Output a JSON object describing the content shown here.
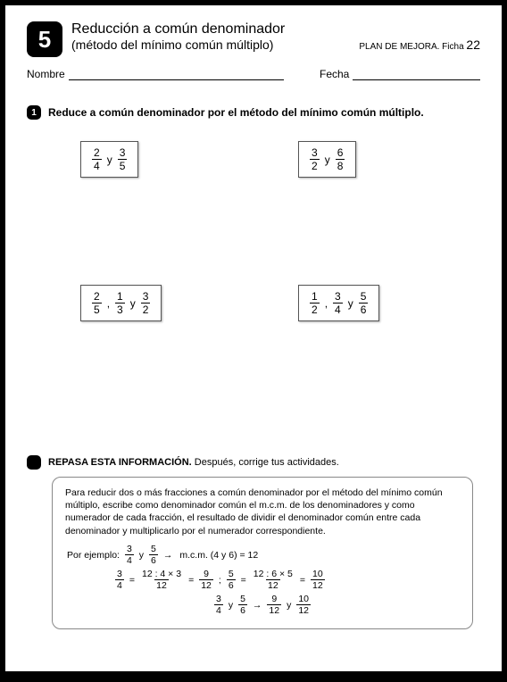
{
  "header": {
    "lesson_number": "5",
    "title": "Reducción a común denominador",
    "subtitle": "(método del mínimo común múltiplo)",
    "plan_label": "PLAN DE MEJORA. Ficha",
    "plan_number": "22"
  },
  "fields": {
    "nombre_label": "Nombre",
    "fecha_label": "Fecha"
  },
  "exercise": {
    "number": "1",
    "instruction": "Reduce a común denominador por el método del mínimo común múltiplo.",
    "y": "y",
    "comma": ",",
    "problems": [
      {
        "fractions": [
          {
            "n": "2",
            "d": "4"
          },
          {
            "n": "3",
            "d": "5"
          }
        ]
      },
      {
        "fractions": [
          {
            "n": "3",
            "d": "2"
          },
          {
            "n": "6",
            "d": "8"
          }
        ]
      },
      {
        "fractions": [
          {
            "n": "2",
            "d": "5"
          },
          {
            "n": "1",
            "d": "3"
          },
          {
            "n": "3",
            "d": "2"
          }
        ]
      },
      {
        "fractions": [
          {
            "n": "1",
            "d": "2"
          },
          {
            "n": "3",
            "d": "4"
          },
          {
            "n": "5",
            "d": "6"
          }
        ]
      }
    ]
  },
  "review": {
    "title_bold": "REPASA ESTA INFORMACIÓN.",
    "title_rest": " Después, corrige tus actividades.",
    "text": "Para reducir dos o más fracciones a común denominador por el método del mínimo común múltiplo, escribe como denominador común el m.c.m. de los denominadores y como numerador de cada fracción, el resultado de dividir el denominador común entre cada denominador y multiplicarlo por el numerador correspondiente.",
    "example_label": "Por ejemplo:",
    "ex_f1": {
      "n": "3",
      "d": "4"
    },
    "ex_f2": {
      "n": "5",
      "d": "6"
    },
    "arrow": "→",
    "mcm_text": "m.c.m. (4 y 6) = 12",
    "eq": "=",
    "semi": ";",
    "line2_a": {
      "n": "3",
      "d": "4"
    },
    "line2_b": {
      "n": "12 : 4 × 3",
      "d": "12"
    },
    "line2_c": {
      "n": "9",
      "d": "12"
    },
    "line2_d": {
      "n": "5",
      "d": "6"
    },
    "line2_e": {
      "n": "12 : 6 × 5",
      "d": "12"
    },
    "line2_f": {
      "n": "10",
      "d": "12"
    },
    "line3_a": {
      "n": "3",
      "d": "4"
    },
    "line3_b": {
      "n": "5",
      "d": "6"
    },
    "line3_c": {
      "n": "9",
      "d": "12"
    },
    "line3_d": {
      "n": "10",
      "d": "12"
    }
  }
}
